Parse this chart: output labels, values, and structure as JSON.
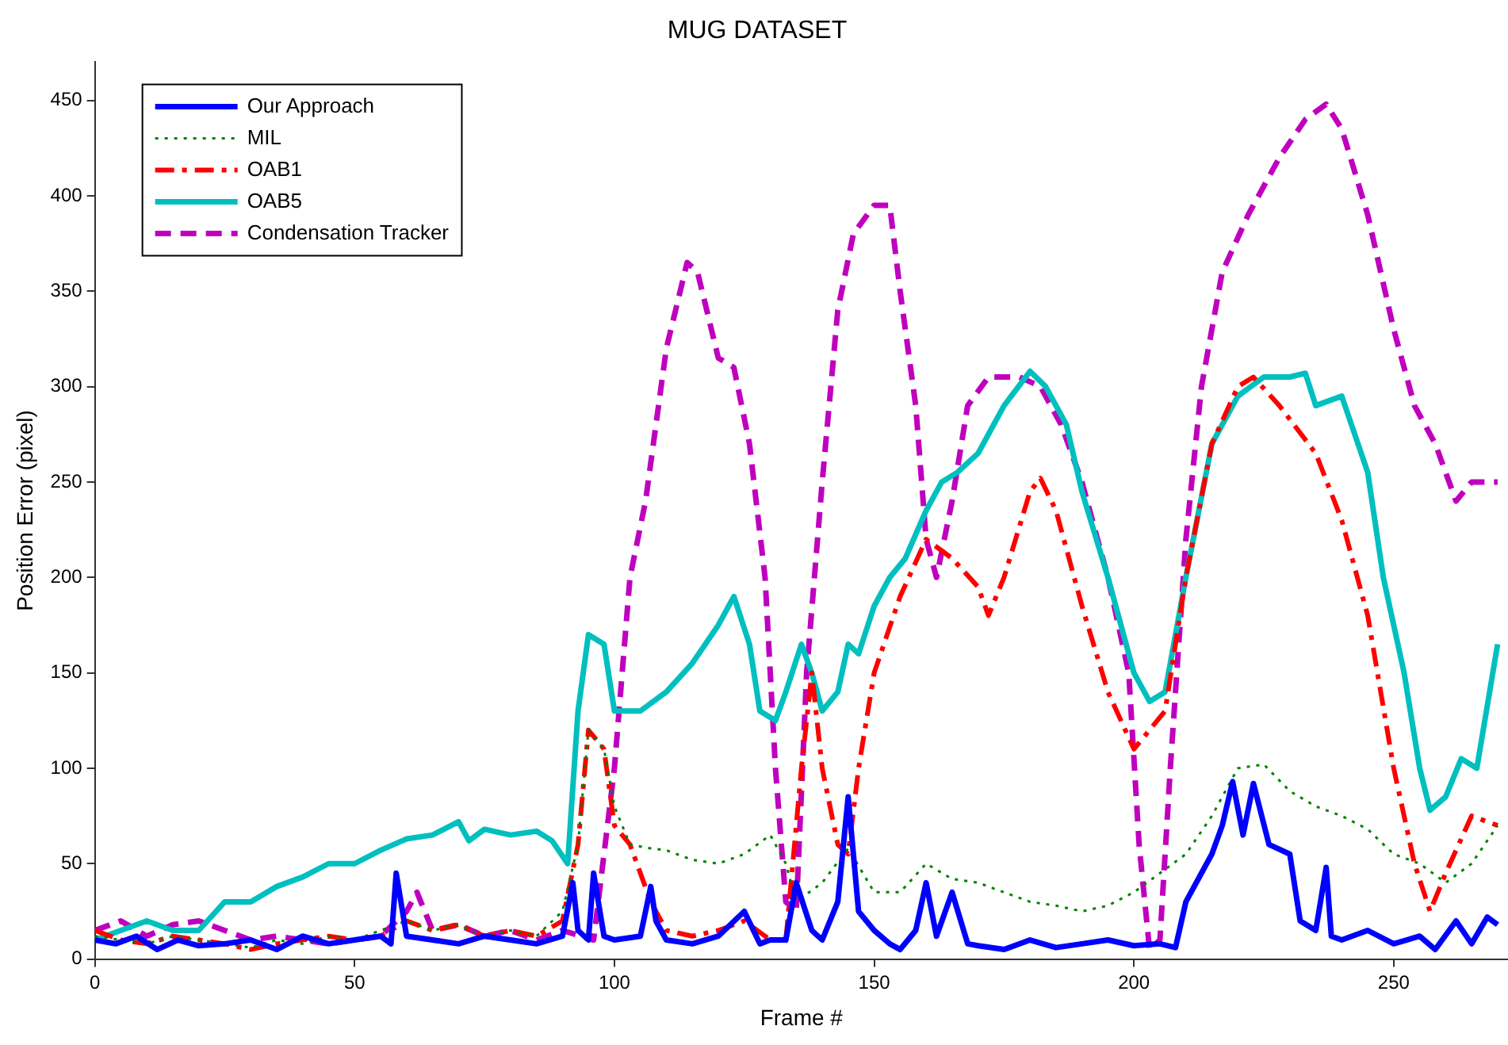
{
  "chart_data": {
    "type": "line",
    "title": "MUG DATASET",
    "xlabel": "Frame #",
    "ylabel": "Position Error (pixel)",
    "xlim": [
      0,
      272
    ],
    "xticks": [
      0,
      50,
      100,
      150,
      200,
      250
    ],
    "ylim": [
      0,
      470
    ],
    "yticks": [
      0,
      50,
      100,
      150,
      200,
      250,
      300,
      350,
      400,
      450
    ],
    "grid": false,
    "legend": "top left",
    "marker": "none",
    "series": [
      {
        "name": "Our Approach",
        "color": "#0000ff",
        "line_style": "solid",
        "x": [
          0,
          4,
          8,
          12,
          16,
          20,
          25,
          30,
          35,
          40,
          45,
          50,
          55,
          57,
          58,
          60,
          65,
          70,
          75,
          80,
          85,
          90,
          92,
          93,
          95,
          96,
          98,
          100,
          105,
          107,
          108,
          110,
          115,
          120,
          125,
          128,
          130,
          133,
          135,
          138,
          140,
          143,
          145,
          147,
          150,
          153,
          155,
          158,
          160,
          162,
          165,
          168,
          170,
          175,
          180,
          185,
          190,
          195,
          200,
          205,
          208,
          210,
          213,
          215,
          217,
          219,
          221,
          223,
          226,
          230,
          232,
          235,
          237,
          238,
          240,
          245,
          250,
          255,
          258,
          262,
          265,
          268,
          270
        ],
        "values": [
          10,
          8,
          12,
          5,
          10,
          7,
          8,
          10,
          5,
          12,
          8,
          10,
          12,
          8,
          45,
          12,
          10,
          8,
          12,
          10,
          8,
          12,
          40,
          15,
          10,
          45,
          12,
          10,
          12,
          38,
          20,
          10,
          8,
          12,
          25,
          8,
          10,
          10,
          40,
          15,
          10,
          30,
          85,
          25,
          15,
          8,
          5,
          15,
          40,
          12,
          35,
          8,
          7,
          5,
          10,
          6,
          8,
          10,
          7,
          8,
          6,
          30,
          45,
          55,
          70,
          93,
          65,
          92,
          60,
          55,
          20,
          15,
          48,
          12,
          10,
          15,
          8,
          12,
          5,
          20,
          8,
          22,
          18
        ]
      },
      {
        "name": "MIL",
        "color": "#008000",
        "line_style": "dotted",
        "x": [
          0,
          5,
          10,
          15,
          20,
          25,
          30,
          35,
          40,
          45,
          50,
          55,
          60,
          65,
          70,
          75,
          80,
          85,
          90,
          93,
          95,
          98,
          100,
          103,
          107,
          110,
          115,
          120,
          125,
          130,
          133,
          135,
          140,
          145,
          150,
          155,
          160,
          165,
          170,
          175,
          180,
          185,
          190,
          195,
          200,
          205,
          210,
          215,
          220,
          225,
          230,
          235,
          240,
          245,
          250,
          255,
          260,
          265,
          270
        ],
        "values": [
          12,
          10,
          8,
          12,
          10,
          8,
          6,
          10,
          8,
          12,
          10,
          15,
          20,
          15,
          18,
          12,
          15,
          12,
          25,
          60,
          120,
          110,
          80,
          60,
          58,
          57,
          52,
          50,
          55,
          65,
          50,
          30,
          40,
          58,
          35,
          35,
          50,
          42,
          40,
          35,
          30,
          28,
          25,
          28,
          35,
          45,
          55,
          75,
          100,
          102,
          88,
          80,
          75,
          68,
          55,
          50,
          40,
          50,
          70
        ]
      },
      {
        "name": "OAB1",
        "color": "#ff0000",
        "line_style": "dashdot",
        "x": [
          0,
          5,
          10,
          15,
          20,
          25,
          30,
          35,
          40,
          45,
          50,
          55,
          60,
          65,
          70,
          75,
          80,
          85,
          90,
          93,
          95,
          98,
          100,
          103,
          107,
          110,
          115,
          120,
          125,
          130,
          133,
          136,
          138,
          140,
          143,
          145,
          147,
          150,
          155,
          160,
          165,
          170,
          172,
          175,
          180,
          182,
          185,
          190,
          195,
          200,
          203,
          206,
          210,
          215,
          220,
          223,
          228,
          235,
          240,
          245,
          250,
          254,
          257,
          260,
          265,
          270
        ],
        "values": [
          15,
          10,
          8,
          12,
          10,
          8,
          5,
          8,
          10,
          12,
          10,
          12,
          20,
          15,
          18,
          12,
          15,
          12,
          20,
          60,
          120,
          110,
          70,
          60,
          30,
          15,
          12,
          15,
          20,
          10,
          10,
          100,
          150,
          100,
          60,
          55,
          100,
          150,
          190,
          220,
          210,
          195,
          180,
          200,
          245,
          252,
          235,
          185,
          140,
          110,
          120,
          130,
          200,
          270,
          300,
          305,
          290,
          265,
          230,
          180,
          100,
          50,
          25,
          45,
          75,
          70
        ]
      },
      {
        "name": "OAB5",
        "color": "#00bfbf",
        "line_style": "solid",
        "x": [
          0,
          5,
          10,
          15,
          20,
          25,
          30,
          35,
          40,
          45,
          50,
          55,
          60,
          65,
          70,
          72,
          75,
          80,
          85,
          88,
          91,
          93,
          95,
          98,
          100,
          105,
          110,
          115,
          120,
          123,
          126,
          128,
          131,
          133,
          136,
          138,
          140,
          143,
          145,
          147,
          150,
          153,
          156,
          160,
          163,
          166,
          170,
          175,
          180,
          183,
          187,
          190,
          195,
          200,
          203,
          206,
          210,
          215,
          220,
          225,
          230,
          233,
          235,
          240,
          245,
          248,
          252,
          255,
          257,
          260,
          263,
          266,
          270
        ],
        "values": [
          10,
          15,
          20,
          15,
          15,
          30,
          30,
          38,
          43,
          50,
          50,
          57,
          63,
          65,
          72,
          62,
          68,
          65,
          67,
          62,
          50,
          130,
          170,
          165,
          130,
          130,
          140,
          155,
          175,
          190,
          165,
          130,
          125,
          140,
          165,
          150,
          130,
          140,
          165,
          160,
          185,
          200,
          210,
          235,
          250,
          255,
          265,
          290,
          308,
          300,
          280,
          245,
          200,
          150,
          135,
          140,
          200,
          270,
          295,
          305,
          305,
          307,
          290,
          295,
          255,
          200,
          150,
          100,
          78,
          85,
          105,
          100,
          165
        ]
      },
      {
        "name": "Condensation Tracker",
        "color": "#bf00bf",
        "line_style": "dashed",
        "x": [
          0,
          5,
          10,
          15,
          20,
          25,
          30,
          35,
          40,
          45,
          50,
          55,
          60,
          62,
          65,
          70,
          75,
          80,
          85,
          90,
          96,
          100,
          103,
          106,
          110,
          114,
          116,
          120,
          123,
          126,
          129,
          131,
          133,
          135,
          137,
          140,
          143,
          146,
          150,
          153,
          155,
          158,
          160,
          162,
          165,
          168,
          172,
          178,
          182,
          186,
          190,
          195,
          199,
          201,
          203,
          205,
          207,
          210,
          213,
          217,
          222,
          228,
          233,
          237,
          240,
          245,
          250,
          254,
          258,
          262,
          265,
          270
        ],
        "values": [
          15,
          20,
          12,
          18,
          20,
          15,
          10,
          12,
          10,
          8,
          10,
          12,
          25,
          35,
          15,
          18,
          12,
          15,
          10,
          15,
          10,
          100,
          200,
          240,
          320,
          365,
          360,
          315,
          310,
          270,
          200,
          100,
          30,
          25,
          150,
          250,
          340,
          380,
          395,
          395,
          350,
          290,
          220,
          200,
          240,
          290,
          305,
          305,
          300,
          280,
          250,
          200,
          150,
          60,
          5,
          10,
          100,
          220,
          300,
          360,
          390,
          420,
          440,
          448,
          435,
          390,
          330,
          290,
          270,
          240,
          250,
          250
        ]
      }
    ]
  }
}
